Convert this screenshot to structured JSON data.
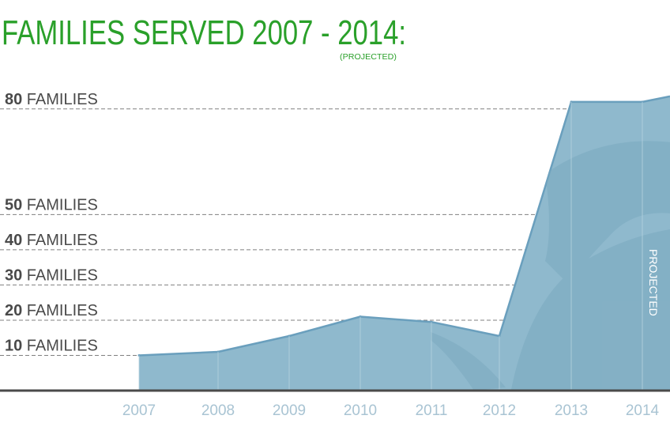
{
  "colors": {
    "title": "#2aa02a",
    "area_fill": "#8fb9cd",
    "area_stroke": "#6a9fbd",
    "watermark": "#7ba9bf",
    "gridline": "#808080",
    "baseline": "#4a4a4a",
    "label_dark": "#4a4a4a",
    "year_label": "#a9c4d3",
    "projected_text": "#ffffff"
  },
  "chart_data": {
    "type": "area",
    "title": "FAMILIES SERVED 2007 - 2014:",
    "subtitle": "(PROJECTED)",
    "categories": [
      "2007",
      "2008",
      "2009",
      "2010",
      "2011",
      "2012",
      "2013",
      "2014"
    ],
    "series": [
      {
        "values": [
          10,
          11,
          15.5,
          21,
          19.5,
          15.5,
          82,
          82
        ]
      }
    ],
    "ylim": [
      0,
      84
    ],
    "ticks": [
      {
        "value": 10,
        "number": "10",
        "unit": "FAMILIES"
      },
      {
        "value": 20,
        "number": "20",
        "unit": "FAMILIES"
      },
      {
        "value": 30,
        "number": "30",
        "unit": "FAMILIES"
      },
      {
        "value": 40,
        "number": "40",
        "unit": "FAMILIES"
      },
      {
        "value": 50,
        "number": "50",
        "unit": "FAMILIES"
      },
      {
        "value": 80,
        "number": "80",
        "unit": "FAMILIES"
      }
    ],
    "annotation": "PROJECTED",
    "grid": true,
    "legend": "none"
  }
}
